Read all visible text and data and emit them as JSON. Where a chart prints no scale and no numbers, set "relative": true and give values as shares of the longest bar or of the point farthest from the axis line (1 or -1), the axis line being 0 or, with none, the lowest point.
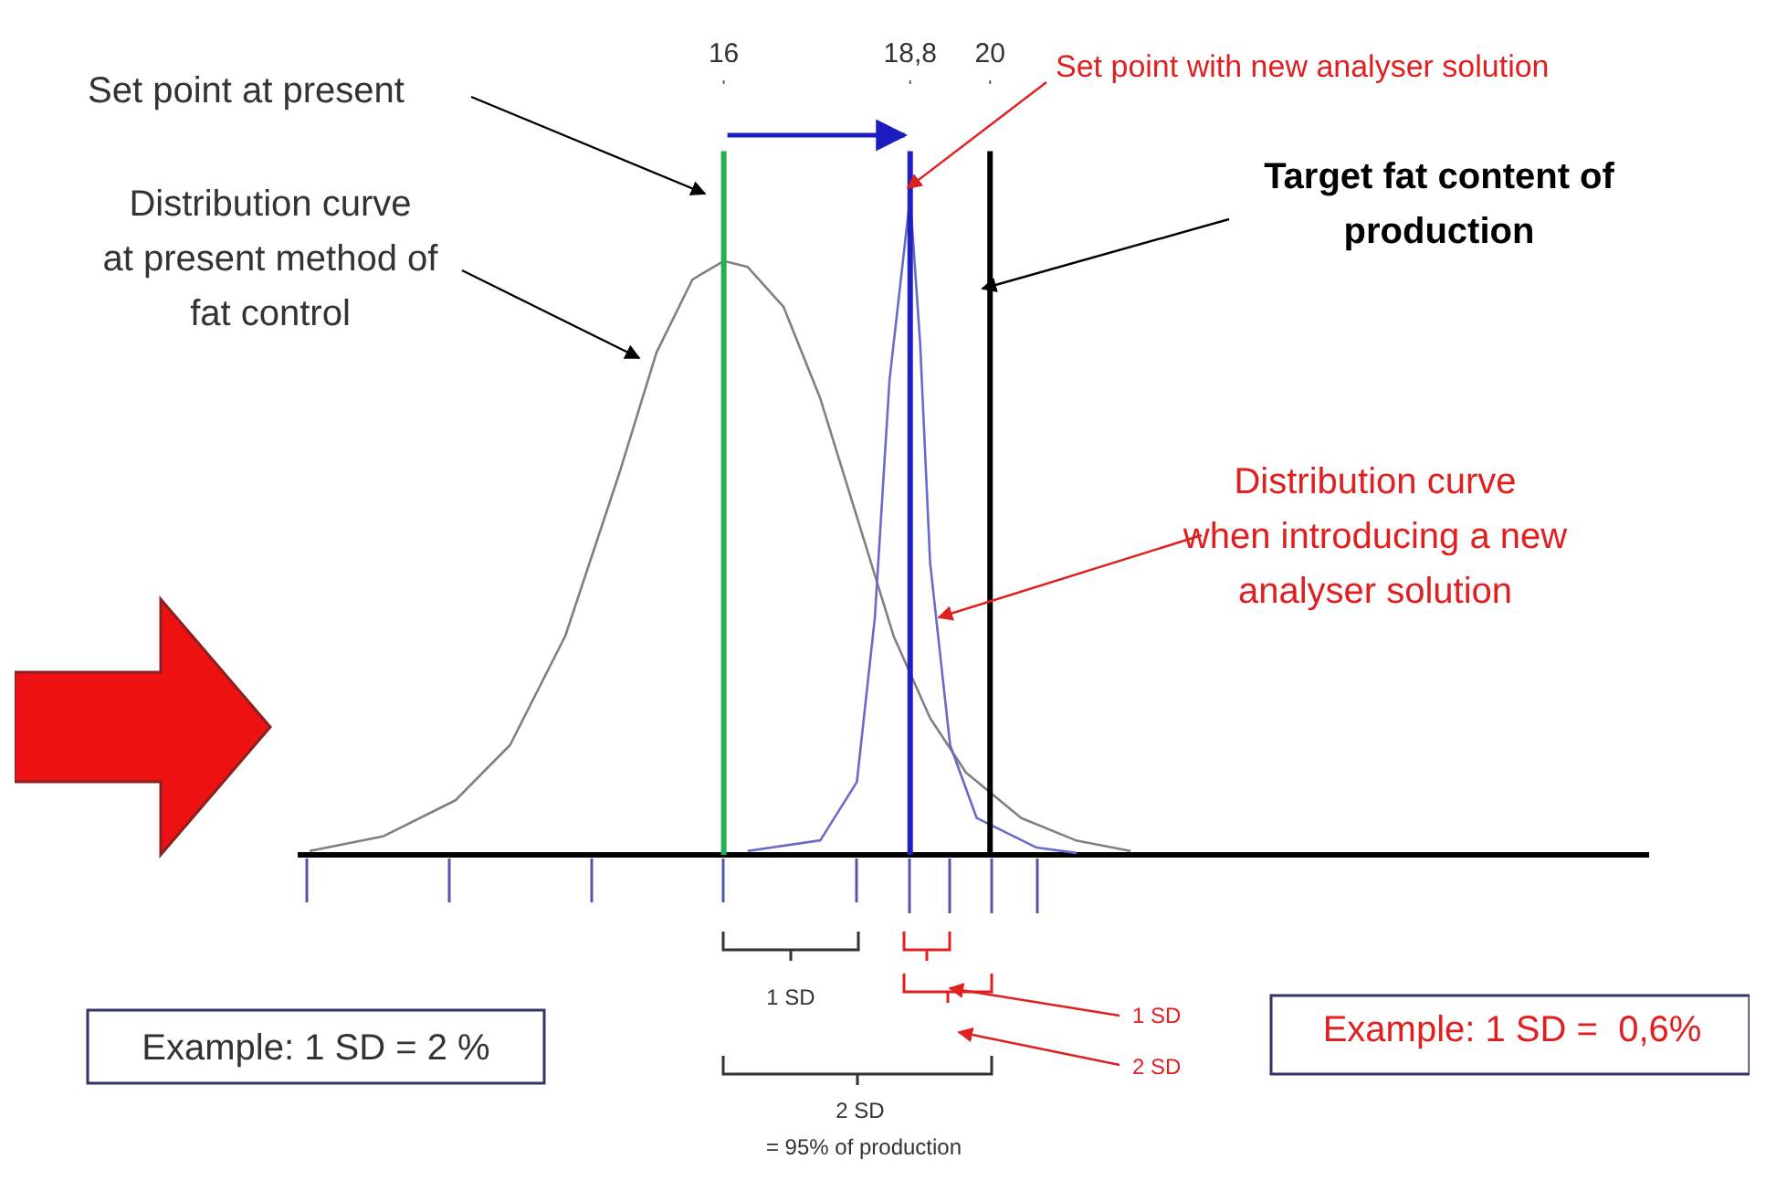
{
  "chart_data": {
    "type": "line",
    "relative": true,
    "xlim": [
      9.6,
      29.9
    ],
    "xticks": [
      16,
      {
        "value": 18.8,
        "label": "18,8"
      },
      20
    ],
    "marker": "none",
    "line_style": "solid",
    "series": [
      {
        "color": "#808080",
        "x": [
          9.78,
          10.88,
          11.97,
          12.79,
          13.62,
          14.44,
          14.99,
          15.53,
          16,
          16.36,
          16.9,
          17.45,
          18.0,
          18.55,
          19.1,
          19.64,
          20.47,
          21.29,
          22.11
        ],
        "values": [
          0.006,
          0.028,
          0.083,
          0.167,
          0.333,
          0.583,
          0.764,
          0.875,
          0.903,
          0.894,
          0.833,
          0.694,
          0.514,
          0.333,
          0.208,
          0.125,
          0.056,
          0.022,
          0.006
        ]
      },
      {
        "color": "#6a6ac8",
        "x": [
          16.36,
          17.45,
          18.0,
          18.27,
          18.49,
          18.8,
          18.95,
          19.1,
          19.4,
          19.8,
          20.7,
          21.3
        ],
        "values": [
          0.006,
          0.022,
          0.111,
          0.361,
          0.722,
          1.0,
          0.778,
          0.444,
          0.167,
          0.056,
          0.011,
          0.003
        ]
      }
    ],
    "ref_lines": [
      {
        "axis": "x",
        "value": 16,
        "color": "#22b050"
      },
      {
        "axis": "x",
        "value": 18.8,
        "color": "#2020c0"
      },
      {
        "axis": "x",
        "value": 20,
        "color": "#000000"
      }
    ],
    "annotations": [
      "Set point at present",
      "Distribution curve at present method of fat control",
      "Set point with new analyser solution",
      "Target fat content of production",
      "Distribution curve when introducing a new analyser solution",
      "1 SD",
      "2 SD",
      "= 95% of production",
      "1 SD",
      "2 SD",
      "Example: 1 SD = 2 %",
      "Example: 1 SD =  0,6%"
    ]
  }
}
